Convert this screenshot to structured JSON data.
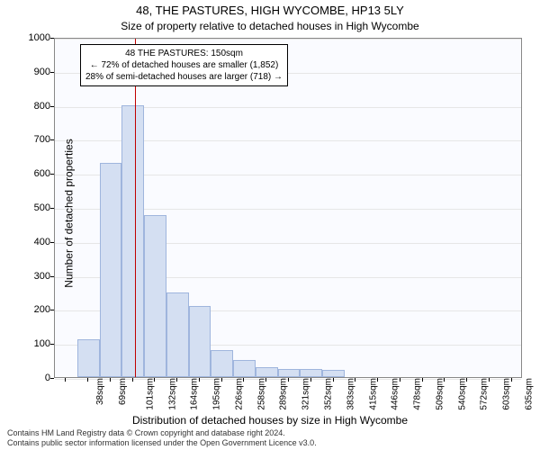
{
  "chart": {
    "type": "histogram",
    "title_main": "48, THE PASTURES, HIGH WYCOMBE, HP13 5LY",
    "title_sub": "Size of property relative to detached houses in High Wycombe",
    "y_axis": {
      "label": "Number of detached properties",
      "min": 0,
      "max": 1000,
      "ticks": [
        0,
        100,
        200,
        300,
        400,
        500,
        600,
        700,
        800,
        900,
        1000
      ]
    },
    "x_axis": {
      "label": "Distribution of detached houses by size in High Wycombe",
      "categories": [
        "38sqm",
        "69sqm",
        "101sqm",
        "132sqm",
        "164sqm",
        "195sqm",
        "226sqm",
        "258sqm",
        "289sqm",
        "321sqm",
        "352sqm",
        "383sqm",
        "415sqm",
        "446sqm",
        "478sqm",
        "509sqm",
        "540sqm",
        "572sqm",
        "603sqm",
        "635sqm",
        "666sqm"
      ]
    },
    "bars": {
      "values": [
        0,
        110,
        630,
        800,
        475,
        250,
        210,
        80,
        50,
        30,
        25,
        25,
        20,
        0,
        0,
        0,
        0,
        0,
        0,
        0,
        0
      ],
      "fill_color": "#d4dff2",
      "border_color": "#9fb5dd"
    },
    "ref_line": {
      "x_category_index": 3.6,
      "color": "#c00000"
    },
    "annotation": {
      "lines": [
        "48 THE PASTURES: 150sqm",
        "← 72% of detached houses are smaller (1,852)",
        "28% of semi-detached houses are larger (718) →"
      ],
      "bg": "#ffffff",
      "border": "#000000"
    },
    "colors": {
      "plot_bg": "#fafbff",
      "grid": "#e6e6e6",
      "axis": "#888888",
      "text": "#000000"
    },
    "footer": [
      "Contains HM Land Registry data © Crown copyright and database right 2024.",
      "Contains public sector information licensed under the Open Government Licence v3.0."
    ]
  }
}
